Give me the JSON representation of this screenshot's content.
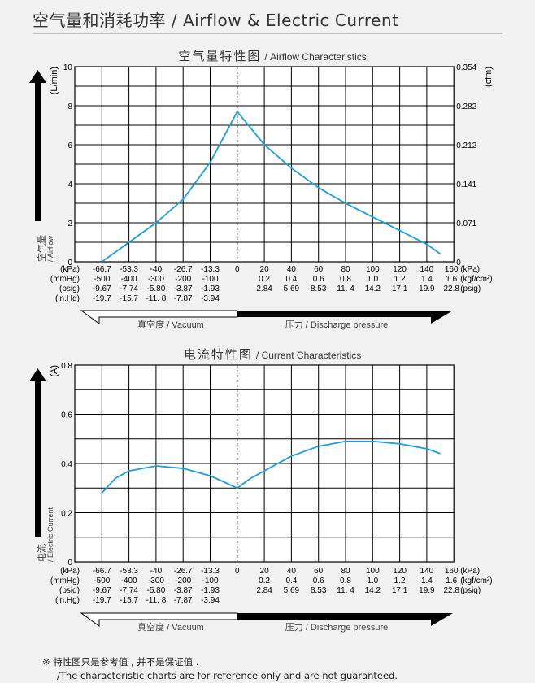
{
  "page_title": "空气量和消耗功率 / Airflow & Electric Current",
  "footnote": {
    "line1": "※ 特性图只是参考值 , 并不是保证值 .",
    "line2": "/The characteristic charts are for reference only and are not guaranteed."
  },
  "colors": {
    "curve": "#1a9ee0",
    "grid": "#000000",
    "plot_bg": "#ffffff",
    "page_bg": "#f2f2f2"
  },
  "x_axis": {
    "kpa_ticks": [
      "-66.7",
      "-53.3",
      "-40",
      "-26.7",
      "-13.3",
      "0",
      "20",
      "40",
      "60",
      "80",
      "100",
      "120",
      "140",
      "160"
    ],
    "mmhg_row": [
      "-500",
      "-400",
      "-300",
      "-200",
      "-100"
    ],
    "psig_vac_row": [
      "-9.67",
      "-7.74",
      "-5.80",
      "-3.87",
      "-1.93"
    ],
    "inhg_row": [
      "-19.7",
      "-15.7",
      "-11. 8",
      "-7.87",
      "-3.94"
    ],
    "kgf_row": [
      "0.2",
      "0.4",
      "0.6",
      "0.8",
      "1.0",
      "1.2",
      "1.4",
      "1.6"
    ],
    "psig_pos_row": [
      "2.84",
      "5.69",
      "8.53",
      "11. 4",
      "14.2",
      "17.1",
      "19.9",
      "22.8"
    ],
    "left_units": [
      "(kPa)",
      "(mmHg)",
      "(psig)",
      "(in.Hg)"
    ],
    "right_units": [
      "(kPa)",
      "(kgf/cm²)",
      "(psig)"
    ],
    "vacuum_label": "真空度 / Vacuum",
    "pressure_label": "压力 / Discharge pressure"
  },
  "chart_data": [
    {
      "type": "line",
      "title_cn": "空气量特性图",
      "title_en": "/ Airflow Characteristics",
      "ylabel": "(L/min)",
      "ylabel_right": "(cfm)",
      "axis_caption_cn": "空气量",
      "axis_caption_en": "/ Airflow",
      "ylim": [
        0,
        10
      ],
      "yticks": [
        "0",
        "2",
        "4",
        "6",
        "8",
        "10"
      ],
      "yticks_right": [
        "0",
        "0.071",
        "0.141",
        "0.212",
        "0.282",
        "0.354"
      ],
      "xlabel": "kPa",
      "series": [
        {
          "name": "Airflow",
          "x": [
            -66.7,
            -53.3,
            -40,
            -26.7,
            -13.3,
            0,
            20,
            40,
            60,
            80,
            100,
            120,
            140,
            150
          ],
          "y": [
            0,
            1.0,
            2.0,
            3.2,
            5.1,
            7.7,
            6.0,
            4.8,
            3.8,
            3.0,
            2.3,
            1.6,
            0.9,
            0.4
          ]
        }
      ]
    },
    {
      "type": "line",
      "title_cn": "电流特性图",
      "title_en": "/ Current Characteristics",
      "ylabel": "(A)",
      "axis_caption_cn": "电流",
      "axis_caption_en": "/ Electric Current",
      "ylim": [
        0,
        0.8
      ],
      "yticks": [
        "0",
        "0.2",
        "0.4",
        "0.6",
        "0.8"
      ],
      "xlabel": "kPa",
      "series": [
        {
          "name": "Current",
          "x": [
            -66.7,
            -60,
            -53.3,
            -40,
            -26.7,
            -13.3,
            0,
            10,
            20,
            40,
            60,
            80,
            100,
            120,
            140,
            150
          ],
          "y": [
            0.28,
            0.34,
            0.37,
            0.39,
            0.38,
            0.35,
            0.3,
            0.34,
            0.37,
            0.43,
            0.47,
            0.49,
            0.49,
            0.48,
            0.46,
            0.44
          ]
        }
      ]
    }
  ]
}
